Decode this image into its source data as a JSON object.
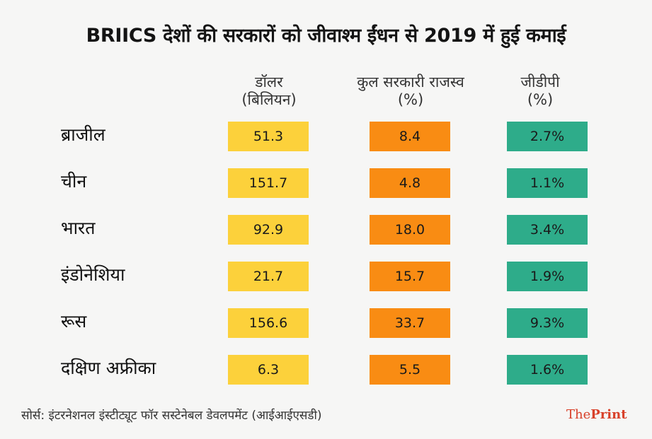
{
  "title": "BRIICS देशों की सरकारों को जीवाश्म ईंधन से 2019 में हुई कमाई",
  "columns": [
    {
      "line1": "डॉलर",
      "line2": "(बिलियन)",
      "color": "#fcd13b"
    },
    {
      "line1": "कुल सरकारी राजस्व",
      "line2": "(%)",
      "color": "#f98c13"
    },
    {
      "line1": "जीडीपी",
      "line2": "(%)",
      "color": "#2eac8a"
    }
  ],
  "rows": [
    {
      "country": "ब्राजील",
      "values": [
        "51.3",
        "8.4",
        "2.7%"
      ]
    },
    {
      "country": "चीन",
      "values": [
        "151.7",
        "4.8",
        "1.1%"
      ]
    },
    {
      "country": "भारत",
      "values": [
        "92.9",
        "18.0",
        "3.4%"
      ]
    },
    {
      "country": "इंडोनेशिया",
      "values": [
        "21.7",
        "15.7",
        "1.9%"
      ]
    },
    {
      "country": "रूस",
      "values": [
        "156.6",
        "33.7",
        "9.3%"
      ]
    },
    {
      "country": "दक्षिण अफ्रीका",
      "values": [
        "6.3",
        "5.5",
        "1.6%"
      ]
    }
  ],
  "source": "सोर्स: इंटरनेशनल इंस्टीट्यूट फॉर सस्टेनेबल डेवलपमेंट (आईआईएसडी)",
  "brand": {
    "part1": "The",
    "part2": "Print",
    "color": "#d8412a"
  },
  "chart_data": {
    "type": "table",
    "title": "BRIICS देशों की सरकारों को जीवाश्म ईंधन से 2019 में हुई कमाई",
    "columns": [
      "डॉलर (बिलियन)",
      "कुल सरकारी राजस्व (%)",
      "जीडीपी (%)"
    ],
    "categories": [
      "ब्राजील",
      "चीन",
      "भारत",
      "इंडोनेशिया",
      "रूस",
      "दक्षिण अफ्रीका"
    ],
    "series": [
      {
        "name": "डॉलर (बिलियन)",
        "values": [
          51.3,
          151.7,
          92.9,
          21.7,
          156.6,
          6.3
        ]
      },
      {
        "name": "कुल सरकारी राजस्व (%)",
        "values": [
          8.4,
          4.8,
          18.0,
          15.7,
          33.7,
          5.5
        ]
      },
      {
        "name": "जीडीपी (%)",
        "values": [
          2.7,
          1.1,
          3.4,
          1.9,
          9.3,
          1.6
        ]
      }
    ]
  }
}
